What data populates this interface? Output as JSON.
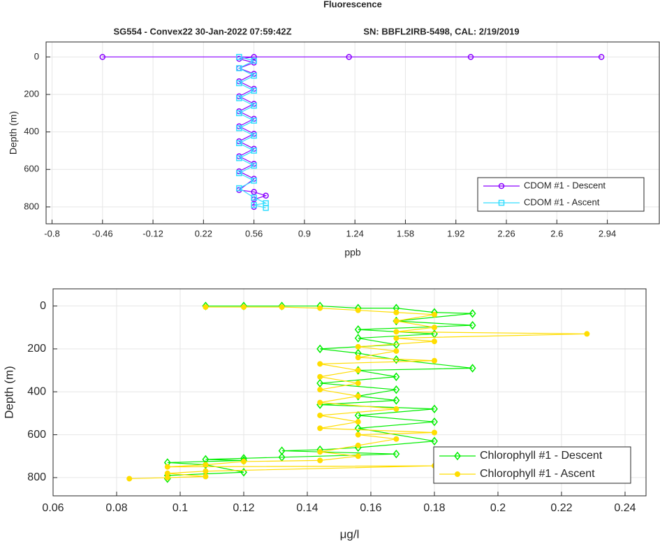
{
  "chart_data": [
    {
      "type": "line",
      "title": "Fluorescence",
      "subtitle": [
        "SG554 - Convex22 30-Jan-2022 07:59:42Z",
        "SN: BBFL2IRB-5498, CAL: 2/19/2019"
      ],
      "xlabel": "ppb",
      "ylabel": "Depth (m)",
      "xlim": [
        -0.84,
        3.29
      ],
      "ylim": [
        -80,
        890
      ],
      "y_reversed": true,
      "grid": true,
      "legend": "southeast",
      "xticks": [
        -0.8,
        -0.46,
        -0.12,
        0.22,
        0.56,
        0.9,
        1.24,
        1.58,
        1.92,
        2.26,
        2.6,
        2.94
      ],
      "yticks": [
        0,
        200,
        400,
        600,
        800
      ],
      "series": [
        {
          "name": "CDOM #1 - Descent",
          "color": "#8a00ff",
          "marker": "circle",
          "x": [
            -0.46,
            2.9,
            2.02,
            1.2,
            0.56,
            0.46,
            0.56,
            0.46,
            0.56,
            0.46,
            0.56,
            0.46,
            0.56,
            0.46,
            0.56,
            0.46,
            0.56,
            0.46,
            0.56,
            0.46,
            0.56,
            0.46,
            0.56,
            0.46,
            0.56,
            0.64,
            0.56,
            0.56
          ],
          "values": [
            0,
            0,
            0,
            0,
            0,
            10,
            30,
            60,
            90,
            130,
            170,
            210,
            250,
            290,
            330,
            370,
            410,
            450,
            490,
            530,
            570,
            610,
            650,
            710,
            720,
            740,
            760,
            800
          ]
        },
        {
          "name": "CDOM #1 - Ascent",
          "color": "#33ddff",
          "marker": "square",
          "x": [
            0.64,
            0.56,
            0.64,
            0.56,
            0.46,
            0.56,
            0.46,
            0.56,
            0.46,
            0.56,
            0.46,
            0.56,
            0.46,
            0.56,
            0.46,
            0.56,
            0.46,
            0.56,
            0.46,
            0.56,
            0.46,
            0.56,
            0.46
          ],
          "values": [
            805,
            790,
            780,
            750,
            700,
            660,
            620,
            580,
            540,
            500,
            460,
            420,
            380,
            340,
            300,
            260,
            220,
            180,
            140,
            100,
            60,
            20,
            0
          ]
        }
      ]
    },
    {
      "type": "line",
      "xlabel": "μg/l",
      "ylabel": "Depth (m)",
      "xlim": [
        0.06,
        0.2466
      ],
      "ylim": [
        -80,
        885
      ],
      "y_reversed": true,
      "grid": true,
      "legend": "southeast",
      "xticks": [
        0.06,
        0.08,
        0.1,
        0.12,
        0.14,
        0.16,
        0.18,
        0.2,
        0.22,
        0.24
      ],
      "yticks": [
        0,
        200,
        400,
        600,
        800
      ],
      "series": [
        {
          "name": "Chlorophyll #1 - Descent",
          "color": "#00ee00",
          "marker": "diamond",
          "x": [
            0.108,
            0.12,
            0.132,
            0.144,
            0.156,
            0.168,
            0.18,
            0.192,
            0.168,
            0.192,
            0.156,
            0.18,
            0.156,
            0.168,
            0.144,
            0.156,
            0.168,
            0.192,
            0.156,
            0.168,
            0.144,
            0.168,
            0.156,
            0.168,
            0.144,
            0.18,
            0.156,
            0.18,
            0.156,
            0.18,
            0.156,
            0.144,
            0.132,
            0.168,
            0.132,
            0.12,
            0.108,
            0.12,
            0.096,
            0.108,
            0.12,
            0.096,
            0.096
          ],
          "values": [
            0,
            0,
            0,
            0,
            10,
            10,
            30,
            35,
            70,
            90,
            110,
            130,
            150,
            180,
            200,
            220,
            250,
            290,
            300,
            330,
            360,
            390,
            420,
            440,
            460,
            480,
            510,
            540,
            570,
            630,
            660,
            670,
            675,
            690,
            705,
            710,
            715,
            720,
            730,
            740,
            775,
            790,
            805
          ]
        },
        {
          "name": "Chlorophyll #1 - Ascent",
          "color": "#ffdd00",
          "marker": "dot",
          "x": [
            0.084,
            0.096,
            0.108,
            0.096,
            0.108,
            0.18,
            0.096,
            0.108,
            0.12,
            0.144,
            0.156,
            0.144,
            0.156,
            0.168,
            0.156,
            0.18,
            0.144,
            0.156,
            0.144,
            0.168,
            0.144,
            0.156,
            0.144,
            0.156,
            0.144,
            0.156,
            0.144,
            0.18,
            0.156,
            0.168,
            0.156,
            0.18,
            0.168,
            0.228,
            0.168,
            0.18,
            0.168,
            0.18,
            0.168,
            0.156,
            0.144,
            0.132,
            0.12,
            0.108
          ],
          "values": [
            805,
            800,
            795,
            780,
            770,
            745,
            750,
            740,
            725,
            720,
            700,
            680,
            650,
            620,
            600,
            590,
            570,
            540,
            510,
            480,
            450,
            420,
            390,
            360,
            330,
            300,
            270,
            255,
            240,
            210,
            190,
            165,
            150,
            130,
            120,
            100,
            70,
            40,
            30,
            20,
            10,
            5,
            5,
            5
          ]
        }
      ]
    }
  ]
}
